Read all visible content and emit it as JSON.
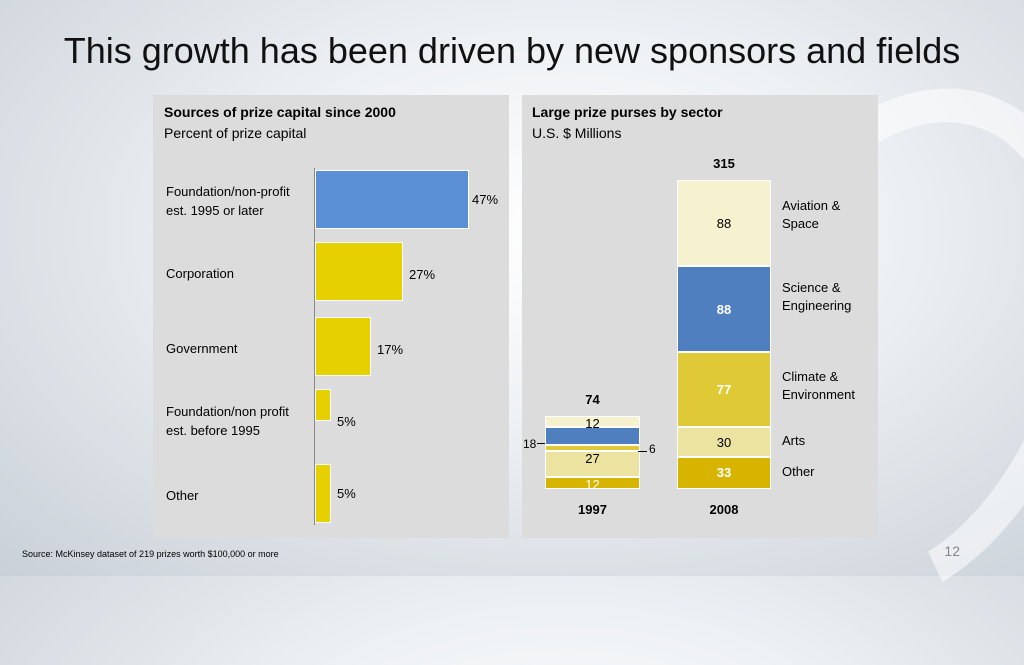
{
  "slide": {
    "title": "This growth has been driven by new sponsors and fields",
    "source": "Source: McKinsey dataset of 219 prizes worth $100,000 or more",
    "page_number": "12"
  },
  "left_chart": {
    "title": "Sources of prize capital since 2000",
    "subtitle": "Percent of prize capital"
  },
  "right_chart": {
    "title": "Large prize purses by sector",
    "subtitle": "U.S. $ Millions"
  },
  "colors": {
    "blue": "#5b8fd6",
    "yellow": "#e6d000",
    "cream": "#f6f1cf",
    "steel": "#4f7fbf",
    "mustard": "#e0c936",
    "pale": "#ece3a0",
    "gold": "#d6b400"
  },
  "chart_data": [
    {
      "type": "bar",
      "orientation": "horizontal",
      "title": "Sources of prize capital since 2000",
      "subtitle": "Percent of prize capital",
      "categories": [
        "Foundation/non-profit est. 1995 or later",
        "Corporation",
        "Government",
        "Foundation/non profit est. before 1995",
        "Other"
      ],
      "labels": [
        "Foundation/non-profit\nest. 1995 or later",
        "Corporation",
        "Government",
        "Foundation/non profit\nest. before 1995",
        "Other"
      ],
      "values": [
        47,
        27,
        17,
        5,
        5
      ],
      "value_labels": [
        "47%",
        "27%",
        "17%",
        "5%",
        "5%"
      ],
      "unit": "%"
    },
    {
      "type": "bar",
      "stacked": true,
      "title": "Large prize purses by sector",
      "subtitle": "U.S. $ Millions",
      "categories": [
        "1997",
        "2008"
      ],
      "totals": [
        74,
        315
      ],
      "total_labels": [
        "74",
        "315"
      ],
      "series": [
        {
          "name": "Other",
          "values": [
            12,
            33
          ],
          "color": "#d6b400"
        },
        {
          "name": "Arts",
          "values": [
            27,
            30
          ],
          "color": "#ece3a0"
        },
        {
          "name": "Climate & Environment",
          "values": [
            6,
            77
          ],
          "color": "#e0c936"
        },
        {
          "name": "Science & Engineering",
          "values": [
            18,
            88
          ],
          "color": "#4f7fbf"
        },
        {
          "name": "Aviation & Space",
          "values": [
            12,
            88
          ],
          "color": "#f6f1cf"
        }
      ],
      "legend_labels": [
        "Other",
        "Arts",
        "Climate &\nEnvironment",
        "Science &\nEngineering",
        "Aviation &\nSpace"
      ],
      "value_labels_2008": [
        "33",
        "30",
        "77",
        "88",
        "88"
      ],
      "value_labels_1997": [
        "12",
        "27",
        "6",
        "18",
        "12"
      ],
      "legend": "right"
    }
  ]
}
